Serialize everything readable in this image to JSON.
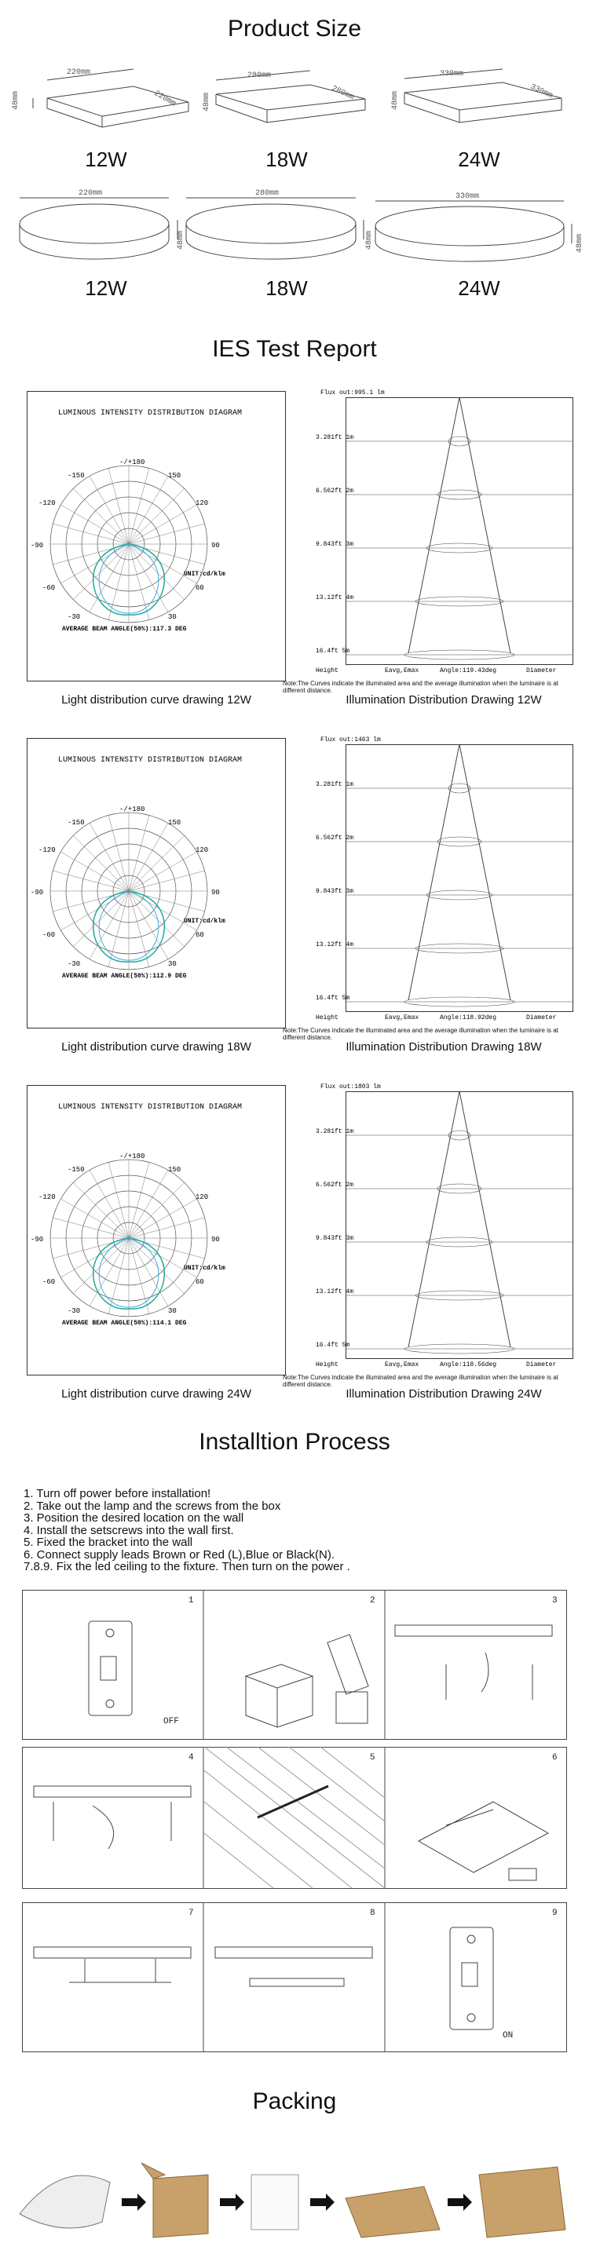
{
  "sections": {
    "product_size": "Product Size",
    "ies": "IES Test Report",
    "install": "Installtion Process",
    "packing": "Packing"
  },
  "sizes": {
    "square": [
      {
        "w": "220mm",
        "d": "220mm",
        "h": "48mm",
        "label": "12W"
      },
      {
        "w": "280mm",
        "d": "280mm",
        "h": "48mm",
        "label": "18W"
      },
      {
        "w": "330mm",
        "d": "330mm",
        "h": "48mm",
        "label": "24W"
      }
    ],
    "round": [
      {
        "w": "220mm",
        "h": "48mm",
        "label": "12W"
      },
      {
        "w": "280mm",
        "h": "48mm",
        "label": "18W"
      },
      {
        "w": "330mm",
        "h": "48mm",
        "label": "24W"
      }
    ]
  },
  "ies": [
    {
      "left_caption": "Light distribution curve drawing 12W",
      "right_caption": "Illumination Distribution Drawing 12W",
      "beam": "AVERAGE BEAM ANGLE(50%):117.3 DEG",
      "flux": "Flux out:995.1 lm",
      "angle": "Angle:119.43deg"
    },
    {
      "left_caption": "Light distribution curve drawing 18W",
      "right_caption": "Illumination Distribution Drawing 18W",
      "beam": "AVERAGE BEAM ANGLE(50%):112.9 DEG",
      "flux": "Flux out:1463 lm",
      "angle": "Angle:118.92deg"
    },
    {
      "left_caption": "Light distribution curve drawing 24W",
      "right_caption": "Illumination Distribution Drawing 24W",
      "beam": "AVERAGE BEAM ANGLE(50%):114.1 DEG",
      "flux": "Flux out:1803 lm",
      "angle": "Angle:118.56deg"
    }
  ],
  "polar": {
    "title": "LUMINOUS INTENSITY DISTRIBUTION DIAGRAM",
    "unit": "UNIT:cd/klm",
    "angles": [
      "-/+180",
      "150",
      "-150",
      "120",
      "-120",
      "90",
      "-90",
      "60",
      "-60",
      "30",
      "-30"
    ]
  },
  "illum": {
    "heights": [
      "3.281ft\n1m",
      "6.562ft\n2m",
      "9.843ft\n3m",
      "13.12ft\n4m",
      "16.4ft\n5m"
    ],
    "footer_left": "Height",
    "footer_mid": "Eavg,Emax",
    "footer_right": "Diameter",
    "note": "Note:The Curves indicate the illuminated area and the average illumination when the luminaire is at different distance."
  },
  "install_steps": [
    "1. Turn off power before installation!",
    "2. Take out the lamp and the screws from the box",
    "3. Position the desired location on the wall",
    "4. Install the setscrews into the wall first.",
    "5. Fixed the bracket into the wall",
    "6. Connect supply leads Brown or Red (L),Blue or Black(N).",
    "7.8.9. Fix the led ceiling to the fixture. Then turn on the power ."
  ],
  "install_labels": {
    "off": "OFF",
    "on": "ON"
  },
  "panel_numbers": [
    "1",
    "2",
    "3",
    "4",
    "5",
    "6",
    "7",
    "8",
    "9"
  ]
}
